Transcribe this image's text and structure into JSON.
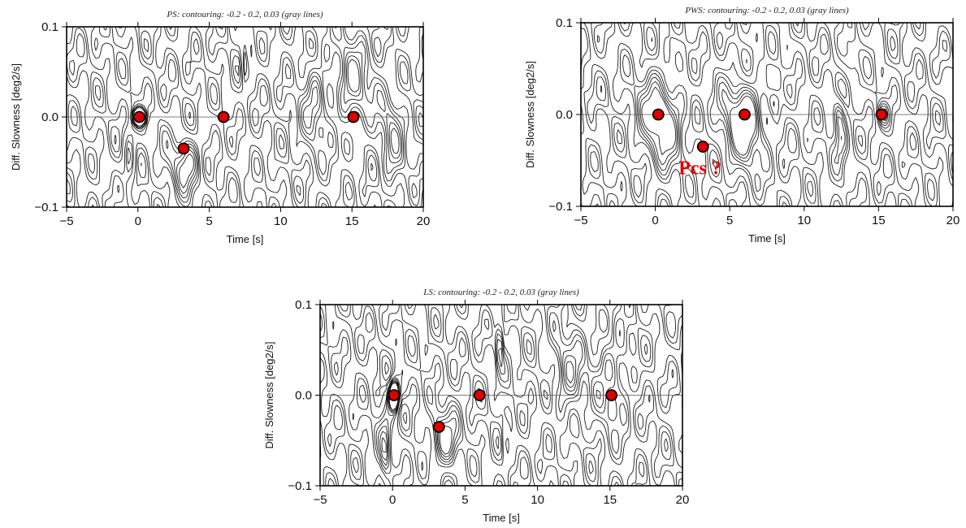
{
  "chart_data": [
    {
      "id": "ps",
      "type": "contour",
      "title": "PS: contouring: -0.2 - 0.2, 0.03 (gray lines)",
      "xlabel": "Time [s]",
      "ylabel": "Diff. Slowness [deg2/s]",
      "xlim": [
        -5,
        20
      ],
      "ylim": [
        -0.1,
        0.1
      ],
      "xticks": [
        "−5",
        "0",
        "5",
        "10",
        "15",
        "20"
      ],
      "yticks": [
        "−0.1",
        "0.0",
        "0.1"
      ],
      "contour_range": [
        -0.2,
        0.2
      ],
      "contour_interval": 0.03,
      "zero_line": 0.0,
      "marker_color": "#e00000",
      "markers": [
        {
          "x": 0.1,
          "y": 0.0
        },
        {
          "x": 3.2,
          "y": -0.035
        },
        {
          "x": 6.0,
          "y": 0.0
        },
        {
          "x": 15.1,
          "y": 0.0
        }
      ],
      "annotations": []
    },
    {
      "id": "pws",
      "type": "contour",
      "title": "PWS: contouring: -0.2 - 0.2, 0.03 (gray lines)",
      "xlabel": "Time [s]",
      "ylabel": "Diff. Slowness [deg2/s]",
      "xlim": [
        -5,
        20
      ],
      "ylim": [
        -0.1,
        0.1
      ],
      "xticks": [
        "−5",
        "0",
        "5",
        "10",
        "15",
        "20"
      ],
      "yticks": [
        "−0.1",
        "0.0",
        "0.1"
      ],
      "contour_range": [
        -0.2,
        0.2
      ],
      "contour_interval": 0.03,
      "zero_line": 0.0,
      "marker_color": "#e00000",
      "markers": [
        {
          "x": 0.2,
          "y": 0.0
        },
        {
          "x": 3.2,
          "y": -0.035
        },
        {
          "x": 6.0,
          "y": 0.0
        },
        {
          "x": 15.2,
          "y": 0.0
        }
      ],
      "annotations": [
        {
          "text": "Pcs ?",
          "x": 3.2,
          "y": -0.058,
          "color": "#e10000"
        }
      ]
    },
    {
      "id": "ls",
      "type": "contour",
      "title": "LS: contouring: -0.2 - 0.2, 0.03 (gray lines)",
      "xlabel": "Time [s]",
      "ylabel": "Diff. Slowness [deg2/s]",
      "xlim": [
        -5,
        20
      ],
      "ylim": [
        -0.1,
        0.1
      ],
      "xticks": [
        "−5",
        "0",
        "5",
        "10",
        "15",
        "20"
      ],
      "yticks": [
        "−0.1",
        "0.0",
        "0.1"
      ],
      "contour_range": [
        -0.2,
        0.2
      ],
      "contour_interval": 0.03,
      "zero_line": 0.0,
      "marker_color": "#e00000",
      "markers": [
        {
          "x": 0.1,
          "y": 0.0
        },
        {
          "x": 3.2,
          "y": -0.035
        },
        {
          "x": 6.0,
          "y": 0.0
        },
        {
          "x": 15.1,
          "y": 0.0
        }
      ],
      "annotations": []
    }
  ]
}
